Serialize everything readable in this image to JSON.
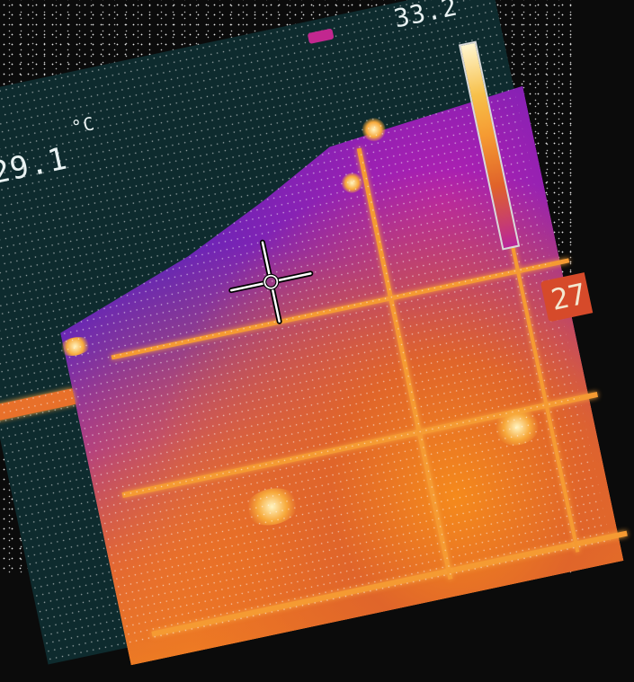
{
  "thermal": {
    "spot_temp": "29.1",
    "unit": "°C",
    "scale_max": "33.2",
    "scale_min": "27"
  },
  "colors": {
    "scale_top": "#fff6cf",
    "scale_mid": "#f59a32",
    "scale_low": "#b8259a",
    "cold_bg": "#0e2b2e"
  }
}
